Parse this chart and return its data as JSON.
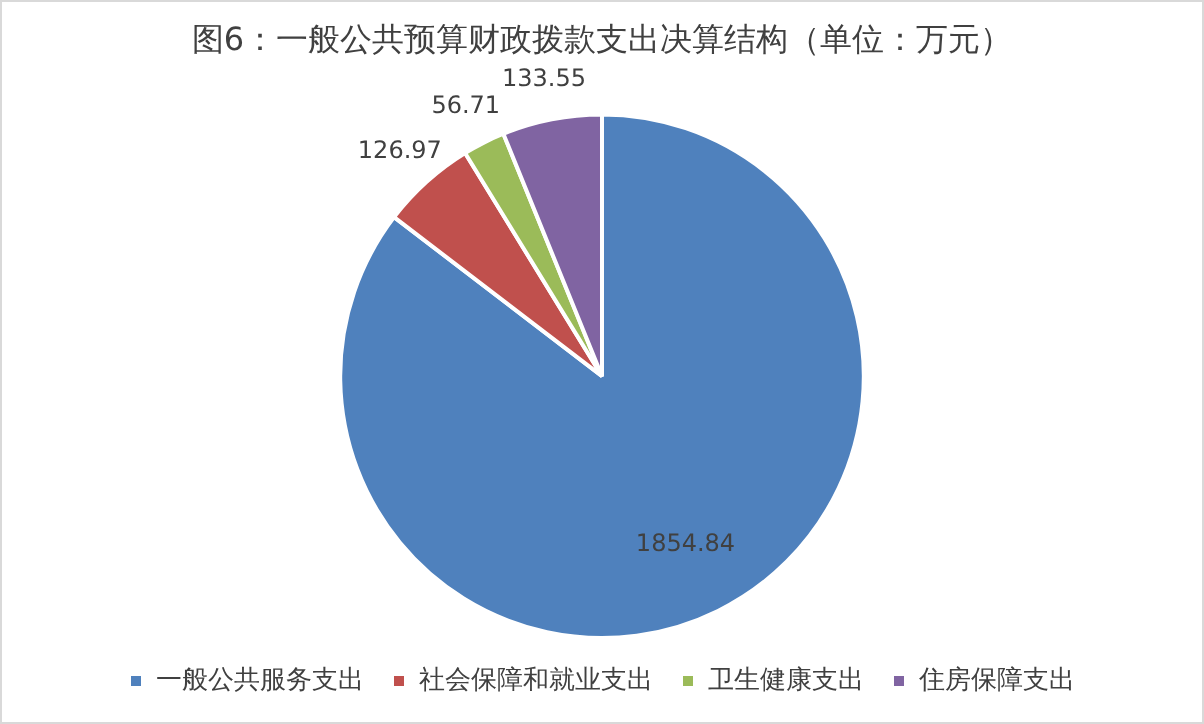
{
  "chart_data": {
    "type": "pie",
    "title": "图6：一般公共预算财政拨款支出决算结构（单位：万元）",
    "categories": [
      "一般公共服务支出",
      "社会保障和就业支出",
      "卫生健康支出",
      "住房保障支出"
    ],
    "values": [
      1854.84,
      126.97,
      56.71,
      133.55
    ],
    "colors": [
      "#4f81bd",
      "#c0504d",
      "#9bbb59",
      "#8064a2"
    ],
    "data_labels": true,
    "legend": "bottom"
  }
}
